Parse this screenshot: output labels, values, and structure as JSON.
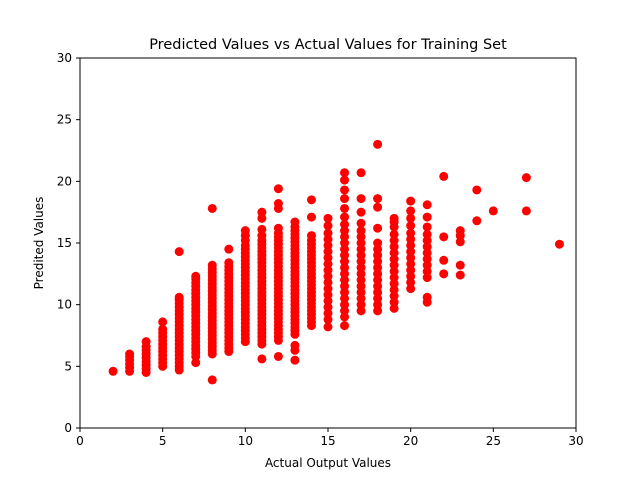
{
  "chart_data": {
    "type": "scatter",
    "title": "Predicted Values vs Actual Values for Training Set",
    "xlabel": "Actual Output Values",
    "ylabel": "Predited Values",
    "xlim": [
      0,
      30
    ],
    "ylim": [
      0,
      30
    ],
    "xticks": [
      "0",
      "5",
      "10",
      "15",
      "20",
      "25",
      "30"
    ],
    "yticks": [
      "0",
      "5",
      "10",
      "15",
      "20",
      "25",
      "30"
    ],
    "grid": false,
    "marker_color": "#ff0000",
    "series": [
      {
        "columns": [
          {
            "x": 2,
            "ys": [
              4.6
            ]
          },
          {
            "x": 3,
            "ys": [
              4.6,
              4.9,
              5.2,
              5.5,
              5.8,
              6.0
            ]
          },
          {
            "x": 4,
            "ys": [
              4.5,
              4.8,
              5.1,
              5.4,
              5.7,
              6.0,
              6.3,
              6.6,
              7.0
            ]
          },
          {
            "x": 5,
            "ys": [
              5.0,
              5.3,
              5.6,
              5.9,
              6.2,
              6.5,
              6.8,
              7.1,
              7.4,
              7.7,
              8.0,
              8.6
            ]
          },
          {
            "x": 6,
            "ys": [
              4.7,
              5.0,
              5.3,
              5.6,
              5.9,
              6.2,
              6.5,
              6.8,
              7.1,
              7.4,
              7.7,
              8.0,
              8.3,
              8.6,
              8.9,
              9.2,
              9.5,
              9.8,
              10.1,
              10.4,
              10.6,
              14.3
            ]
          },
          {
            "x": 7,
            "ys": [
              5.3,
              5.8,
              6.1,
              6.4,
              6.7,
              7.0,
              7.3,
              7.6,
              7.9,
              8.2,
              8.5,
              8.8,
              9.1,
              9.4,
              9.7,
              10.0,
              10.3,
              10.6,
              10.9,
              11.2,
              11.5,
              11.8,
              12.1,
              12.3
            ]
          },
          {
            "x": 8,
            "ys": [
              3.9,
              6.0,
              6.3,
              6.6,
              6.9,
              7.2,
              7.5,
              7.8,
              8.1,
              8.4,
              8.7,
              9.0,
              9.3,
              9.6,
              9.9,
              10.2,
              10.5,
              10.8,
              11.1,
              11.4,
              11.7,
              12.0,
              12.3,
              12.6,
              12.9,
              13.2,
              17.8
            ]
          },
          {
            "x": 9,
            "ys": [
              6.2,
              6.5,
              6.8,
              7.1,
              7.4,
              7.7,
              8.0,
              8.3,
              8.6,
              8.9,
              9.2,
              9.5,
              9.8,
              10.1,
              10.4,
              10.7,
              11.0,
              11.3,
              11.6,
              11.9,
              12.2,
              12.5,
              12.8,
              13.1,
              13.4,
              14.5
            ]
          },
          {
            "x": 10,
            "ys": [
              7.0,
              7.3,
              7.6,
              7.9,
              8.2,
              8.5,
              8.8,
              9.1,
              9.4,
              9.7,
              10.0,
              10.3,
              10.6,
              10.9,
              11.2,
              11.5,
              11.8,
              12.1,
              12.4,
              12.7,
              13.0,
              13.3,
              13.6,
              13.9,
              14.2,
              14.5,
              14.8,
              15.2,
              15.6,
              16.0
            ]
          },
          {
            "x": 11,
            "ys": [
              5.6,
              6.8,
              7.1,
              7.4,
              7.7,
              8.0,
              8.3,
              8.6,
              8.9,
              9.2,
              9.5,
              9.8,
              10.1,
              10.4,
              10.7,
              11.0,
              11.3,
              11.6,
              11.9,
              12.2,
              12.5,
              12.8,
              13.1,
              13.4,
              13.7,
              14.0,
              14.3,
              14.6,
              14.9,
              15.2,
              15.6,
              16.1,
              17.0,
              17.5
            ]
          },
          {
            "x": 12,
            "ys": [
              5.8,
              7.1,
              7.4,
              7.7,
              8.0,
              8.3,
              8.6,
              8.9,
              9.2,
              9.5,
              9.8,
              10.1,
              10.4,
              10.7,
              11.0,
              11.3,
              11.6,
              11.9,
              12.2,
              12.5,
              12.8,
              13.1,
              13.4,
              13.7,
              14.0,
              14.3,
              14.6,
              14.9,
              15.2,
              15.5,
              15.8,
              16.2,
              17.8,
              18.2,
              19.4
            ]
          },
          {
            "x": 13,
            "ys": [
              5.5,
              6.3,
              6.7,
              7.6,
              7.9,
              8.2,
              8.5,
              8.8,
              9.1,
              9.4,
              9.7,
              10.0,
              10.3,
              10.6,
              10.9,
              11.2,
              11.5,
              11.8,
              12.1,
              12.4,
              12.7,
              13.0,
              13.3,
              13.6,
              13.9,
              14.2,
              14.5,
              14.8,
              15.1,
              15.4,
              15.7,
              16.0,
              16.3,
              16.7
            ]
          },
          {
            "x": 14,
            "ys": [
              8.3,
              8.6,
              8.9,
              9.2,
              9.5,
              9.8,
              10.1,
              10.4,
              10.7,
              11.0,
              11.3,
              11.6,
              11.9,
              12.2,
              12.5,
              12.8,
              13.1,
              13.4,
              13.7,
              14.0,
              14.3,
              14.6,
              14.9,
              15.2,
              15.6,
              17.1,
              18.5
            ]
          },
          {
            "x": 15,
            "ys": [
              8.2,
              8.8,
              9.3,
              9.8,
              10.3,
              10.8,
              11.3,
              11.8,
              12.3,
              12.8,
              13.3,
              13.8,
              14.3,
              14.8,
              15.3,
              15.8,
              16.4,
              17.0
            ]
          },
          {
            "x": 16,
            "ys": [
              8.3,
              9.0,
              9.5,
              10.0,
              10.5,
              11.0,
              11.5,
              12.0,
              12.5,
              13.0,
              13.5,
              14.0,
              14.5,
              15.0,
              15.5,
              16.0,
              16.5,
              17.1,
              17.8,
              18.6,
              19.3,
              20.1,
              20.7
            ]
          },
          {
            "x": 17,
            "ys": [
              9.5,
              10.0,
              10.5,
              11.0,
              11.5,
              12.0,
              12.5,
              13.0,
              13.5,
              14.0,
              14.5,
              15.0,
              15.5,
              16.0,
              16.6,
              17.5,
              18.6,
              20.7
            ]
          },
          {
            "x": 18,
            "ys": [
              9.5,
              10.0,
              10.5,
              11.0,
              11.5,
              12.0,
              12.5,
              13.0,
              13.5,
              14.0,
              14.5,
              15.0,
              16.2,
              17.9,
              18.6,
              23.0
            ]
          },
          {
            "x": 19,
            "ys": [
              9.7,
              10.2,
              10.7,
              11.2,
              11.7,
              12.2,
              12.7,
              13.2,
              13.7,
              14.2,
              14.7,
              15.2,
              15.7,
              16.3,
              16.7,
              17.0
            ]
          },
          {
            "x": 20,
            "ys": [
              11.3,
              11.8,
              12.3,
              12.8,
              13.3,
              13.8,
              14.3,
              14.8,
              15.3,
              15.8,
              16.4,
              17.0,
              17.6,
              18.4
            ]
          },
          {
            "x": 21,
            "ys": [
              10.2,
              10.6,
              12.2,
              12.7,
              13.2,
              13.7,
              14.2,
              14.7,
              15.2,
              15.7,
              16.3,
              17.1,
              18.1
            ]
          },
          {
            "x": 22,
            "ys": [
              12.5,
              13.6,
              15.5,
              20.4
            ]
          },
          {
            "x": 23,
            "ys": [
              12.4,
              13.2,
              15.1,
              15.6,
              16.0
            ]
          },
          {
            "x": 24,
            "ys": [
              16.8,
              19.3
            ]
          },
          {
            "x": 25,
            "ys": [
              17.6
            ]
          },
          {
            "x": 27,
            "ys": [
              17.6,
              20.3
            ]
          },
          {
            "x": 29,
            "ys": [
              14.9
            ]
          }
        ]
      }
    ]
  }
}
